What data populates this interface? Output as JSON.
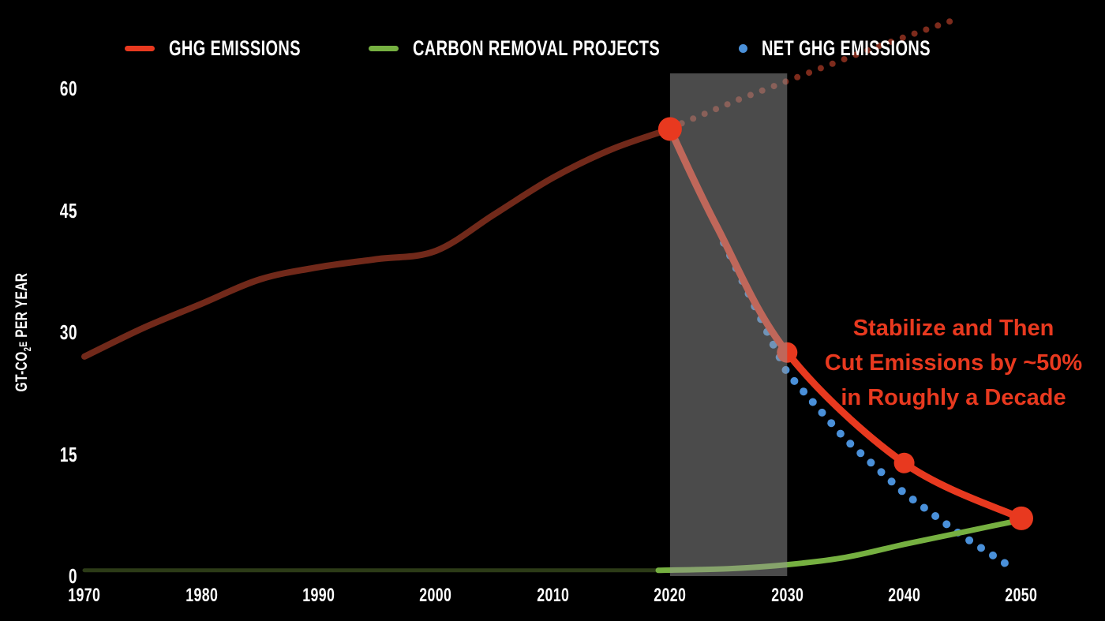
{
  "legend": {
    "items": [
      {
        "label": "GHG EMISSIONS",
        "swatch": "dash",
        "color": "#e8391f"
      },
      {
        "label": "CARBON REMOVAL PROJECTS",
        "swatch": "dash",
        "color": "#76b041"
      },
      {
        "label": "NET GHG EMISSIONS",
        "swatch": "dot",
        "color": "#4a90d9"
      }
    ]
  },
  "axes": {
    "y_label_parts": {
      "prefix": "GT-CO",
      "sub": "2",
      "small": "E",
      "suffix": "PER YEAR"
    },
    "y_ticks": [
      60,
      45,
      30,
      15,
      0
    ],
    "x_ticks": [
      1970,
      1980,
      1990,
      2000,
      2010,
      2020,
      2030,
      2040,
      2050
    ]
  },
  "annotation": {
    "lines": [
      "Stabilize and Then",
      "Cut Emissions by ~50%",
      "in Roughly a Decade"
    ],
    "color": "#e8391f"
  },
  "colors": {
    "background": "#000000",
    "ghg_projection": "#e8391f",
    "ghg_historical": "#71291a",
    "ghg_bau_dotted": "#7d2b1c",
    "carbon_removal": "#76b041",
    "carbon_removal_historical": "#2c3b17",
    "net_emissions": "#4a90d9",
    "highlight_band": "rgba(150,150,150,0.5)",
    "text_white": "#ffffff"
  },
  "chart_data": {
    "type": "line",
    "title": "",
    "xlabel": "",
    "ylabel": "GT-CO2e PER YEAR",
    "xlim": [
      1970,
      2050
    ],
    "ylim": [
      0,
      60
    ],
    "grid": false,
    "legend_position": "top",
    "highlight_band": {
      "from_year": 2020,
      "to_year": 2030
    },
    "series": [
      {
        "name": "GHG Emissions (historical)",
        "color": "#71291a",
        "style": "solid",
        "width": 8,
        "points": [
          [
            1970,
            27
          ],
          [
            1975,
            30.5
          ],
          [
            1980,
            33.5
          ],
          [
            1985,
            36.5
          ],
          [
            1990,
            38
          ],
          [
            1995,
            39
          ],
          [
            2000,
            40
          ],
          [
            2005,
            44.5
          ],
          [
            2010,
            49
          ],
          [
            2015,
            52.5
          ],
          [
            2020,
            55
          ]
        ]
      },
      {
        "name": "GHG Emissions business-as-usual (dotted)",
        "color": "#7d2b1c",
        "style": "dotted",
        "width": 8,
        "points": [
          [
            2021,
            55.7
          ],
          [
            2026,
            58.7
          ],
          [
            2032,
            62
          ],
          [
            2038,
            65.3
          ],
          [
            2044,
            68.3
          ]
        ]
      },
      {
        "name": "Net GHG Emissions (dotted)",
        "color": "#4a90d9",
        "style": "dotted",
        "width": 10,
        "points": [
          [
            2024.6,
            41
          ],
          [
            2030,
            25
          ],
          [
            2035,
            16.8
          ],
          [
            2040,
            10.2
          ],
          [
            2045,
            4.9
          ],
          [
            2048.8,
            1.4
          ]
        ]
      },
      {
        "name": "Carbon Removal Projects (historical)",
        "color": "#2c3b17",
        "style": "solid",
        "width": 5,
        "points": [
          [
            1970,
            0.7
          ],
          [
            2019,
            0.7
          ]
        ]
      },
      {
        "name": "Carbon Removal Projects (projection)",
        "color": "#76b041",
        "style": "solid",
        "width": 7,
        "points": [
          [
            2019,
            0.7
          ],
          [
            2025,
            0.9
          ],
          [
            2030,
            1.4
          ],
          [
            2035,
            2.3
          ],
          [
            2040,
            3.9
          ],
          [
            2045,
            5.4
          ],
          [
            2050,
            6.9
          ]
        ]
      },
      {
        "name": "GHG Emissions (projection)",
        "color": "#e8391f",
        "style": "solid",
        "width": 9,
        "points": [
          [
            2020,
            55
          ],
          [
            2024,
            43
          ],
          [
            2030,
            27.5
          ],
          [
            2040,
            13.9
          ],
          [
            2050,
            7.1
          ]
        ],
        "markers": [
          {
            "year": 2020,
            "value": 55,
            "r": 15,
            "above_band": true
          },
          {
            "year": 2030,
            "value": 27.5,
            "r": 13,
            "above_band": false
          },
          {
            "year": 2040,
            "value": 13.9,
            "r": 13,
            "above_band": false
          },
          {
            "year": 2050,
            "value": 7.1,
            "r": 15,
            "above_band": false
          }
        ]
      }
    ]
  }
}
